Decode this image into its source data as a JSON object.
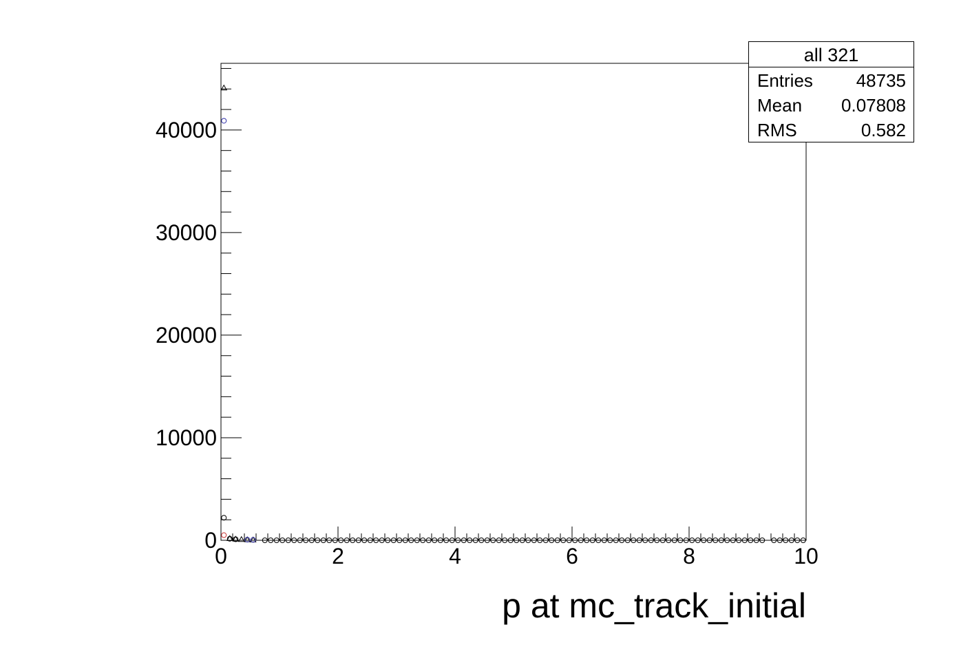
{
  "chart_data": {
    "type": "scatter",
    "title": "",
    "xlabel": "p at mc_track_initial",
    "ylabel": "",
    "xlim": [
      0,
      10
    ],
    "ylim": [
      0,
      46500
    ],
    "x_ticks": [
      "0",
      "2",
      "4",
      "6",
      "8",
      "10"
    ],
    "y_ticks": [
      "0",
      "10000",
      "20000",
      "30000",
      "40000"
    ],
    "x_tick_values": [
      0,
      2,
      4,
      6,
      8,
      10
    ],
    "y_tick_values": [
      0,
      10000,
      20000,
      30000,
      40000
    ],
    "series": [
      {
        "marker": "triangle",
        "color": "#000000",
        "x": [
          0.05,
          0.15,
          0.25,
          0.35,
          0.45,
          0.55
        ],
        "y": [
          44100,
          180,
          120,
          80,
          60,
          40
        ]
      },
      {
        "marker": "circle",
        "color": "#3333aa",
        "x": [
          0.05,
          0.45,
          0.55
        ],
        "y": [
          40900,
          60,
          40
        ]
      },
      {
        "marker": "circle",
        "color": "#cc3333",
        "x": [
          0.05
        ],
        "y": [
          500
        ]
      },
      {
        "marker": "circle",
        "color": "#000000",
        "x": [
          0.05,
          0.15,
          0.25
        ],
        "y": [
          2200,
          150,
          100
        ]
      }
    ],
    "baseline_markers": {
      "x_start": 0.75,
      "x_end": 9.95,
      "step": 0.1,
      "gap": [
        9.25,
        9.4
      ],
      "y": 0
    }
  },
  "stats": {
    "title": "all 321",
    "rows": [
      {
        "label": "Entries",
        "value": "48735"
      },
      {
        "label": "Mean",
        "value": "0.07808"
      },
      {
        "label": "RMS",
        "value": "0.582"
      }
    ]
  }
}
